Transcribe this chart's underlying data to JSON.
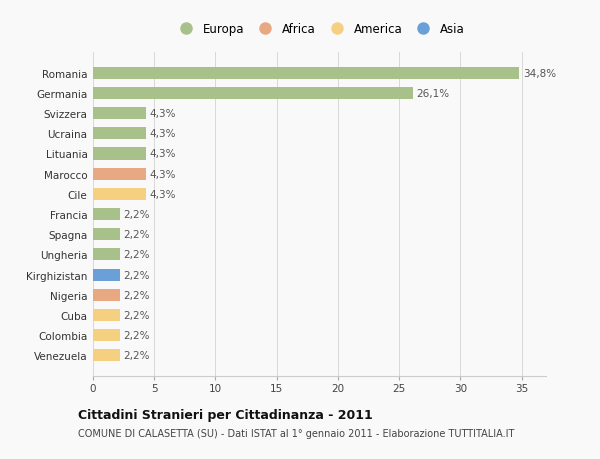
{
  "countries": [
    "Romania",
    "Germania",
    "Svizzera",
    "Ucraina",
    "Lituania",
    "Marocco",
    "Cile",
    "Francia",
    "Spagna",
    "Ungheria",
    "Kirghizistan",
    "Nigeria",
    "Cuba",
    "Colombia",
    "Venezuela"
  ],
  "values": [
    34.8,
    26.1,
    4.3,
    4.3,
    4.3,
    4.3,
    4.3,
    2.2,
    2.2,
    2.2,
    2.2,
    2.2,
    2.2,
    2.2,
    2.2
  ],
  "labels": [
    "34,8%",
    "26,1%",
    "4,3%",
    "4,3%",
    "4,3%",
    "4,3%",
    "4,3%",
    "2,2%",
    "2,2%",
    "2,2%",
    "2,2%",
    "2,2%",
    "2,2%",
    "2,2%",
    "2,2%"
  ],
  "continents": [
    "Europa",
    "Europa",
    "Europa",
    "Europa",
    "Europa",
    "Africa",
    "America",
    "Europa",
    "Europa",
    "Europa",
    "Asia",
    "Africa",
    "America",
    "America",
    "America"
  ],
  "colors": {
    "Europa": "#a8c08a",
    "Africa": "#e8a882",
    "America": "#f5d080",
    "Asia": "#6a9fd8"
  },
  "legend_order": [
    "Europa",
    "Africa",
    "America",
    "Asia"
  ],
  "title": "Cittadini Stranieri per Cittadinanza - 2011",
  "subtitle": "COMUNE DI CALASETTA (SU) - Dati ISTAT al 1° gennaio 2011 - Elaborazione TUTTITALIA.IT",
  "xlim": [
    0,
    37
  ],
  "xticks": [
    0,
    5,
    10,
    15,
    20,
    25,
    30,
    35
  ],
  "background_color": "#f9f9f9",
  "grid_color": "#d8d8d8",
  "bar_height": 0.6
}
